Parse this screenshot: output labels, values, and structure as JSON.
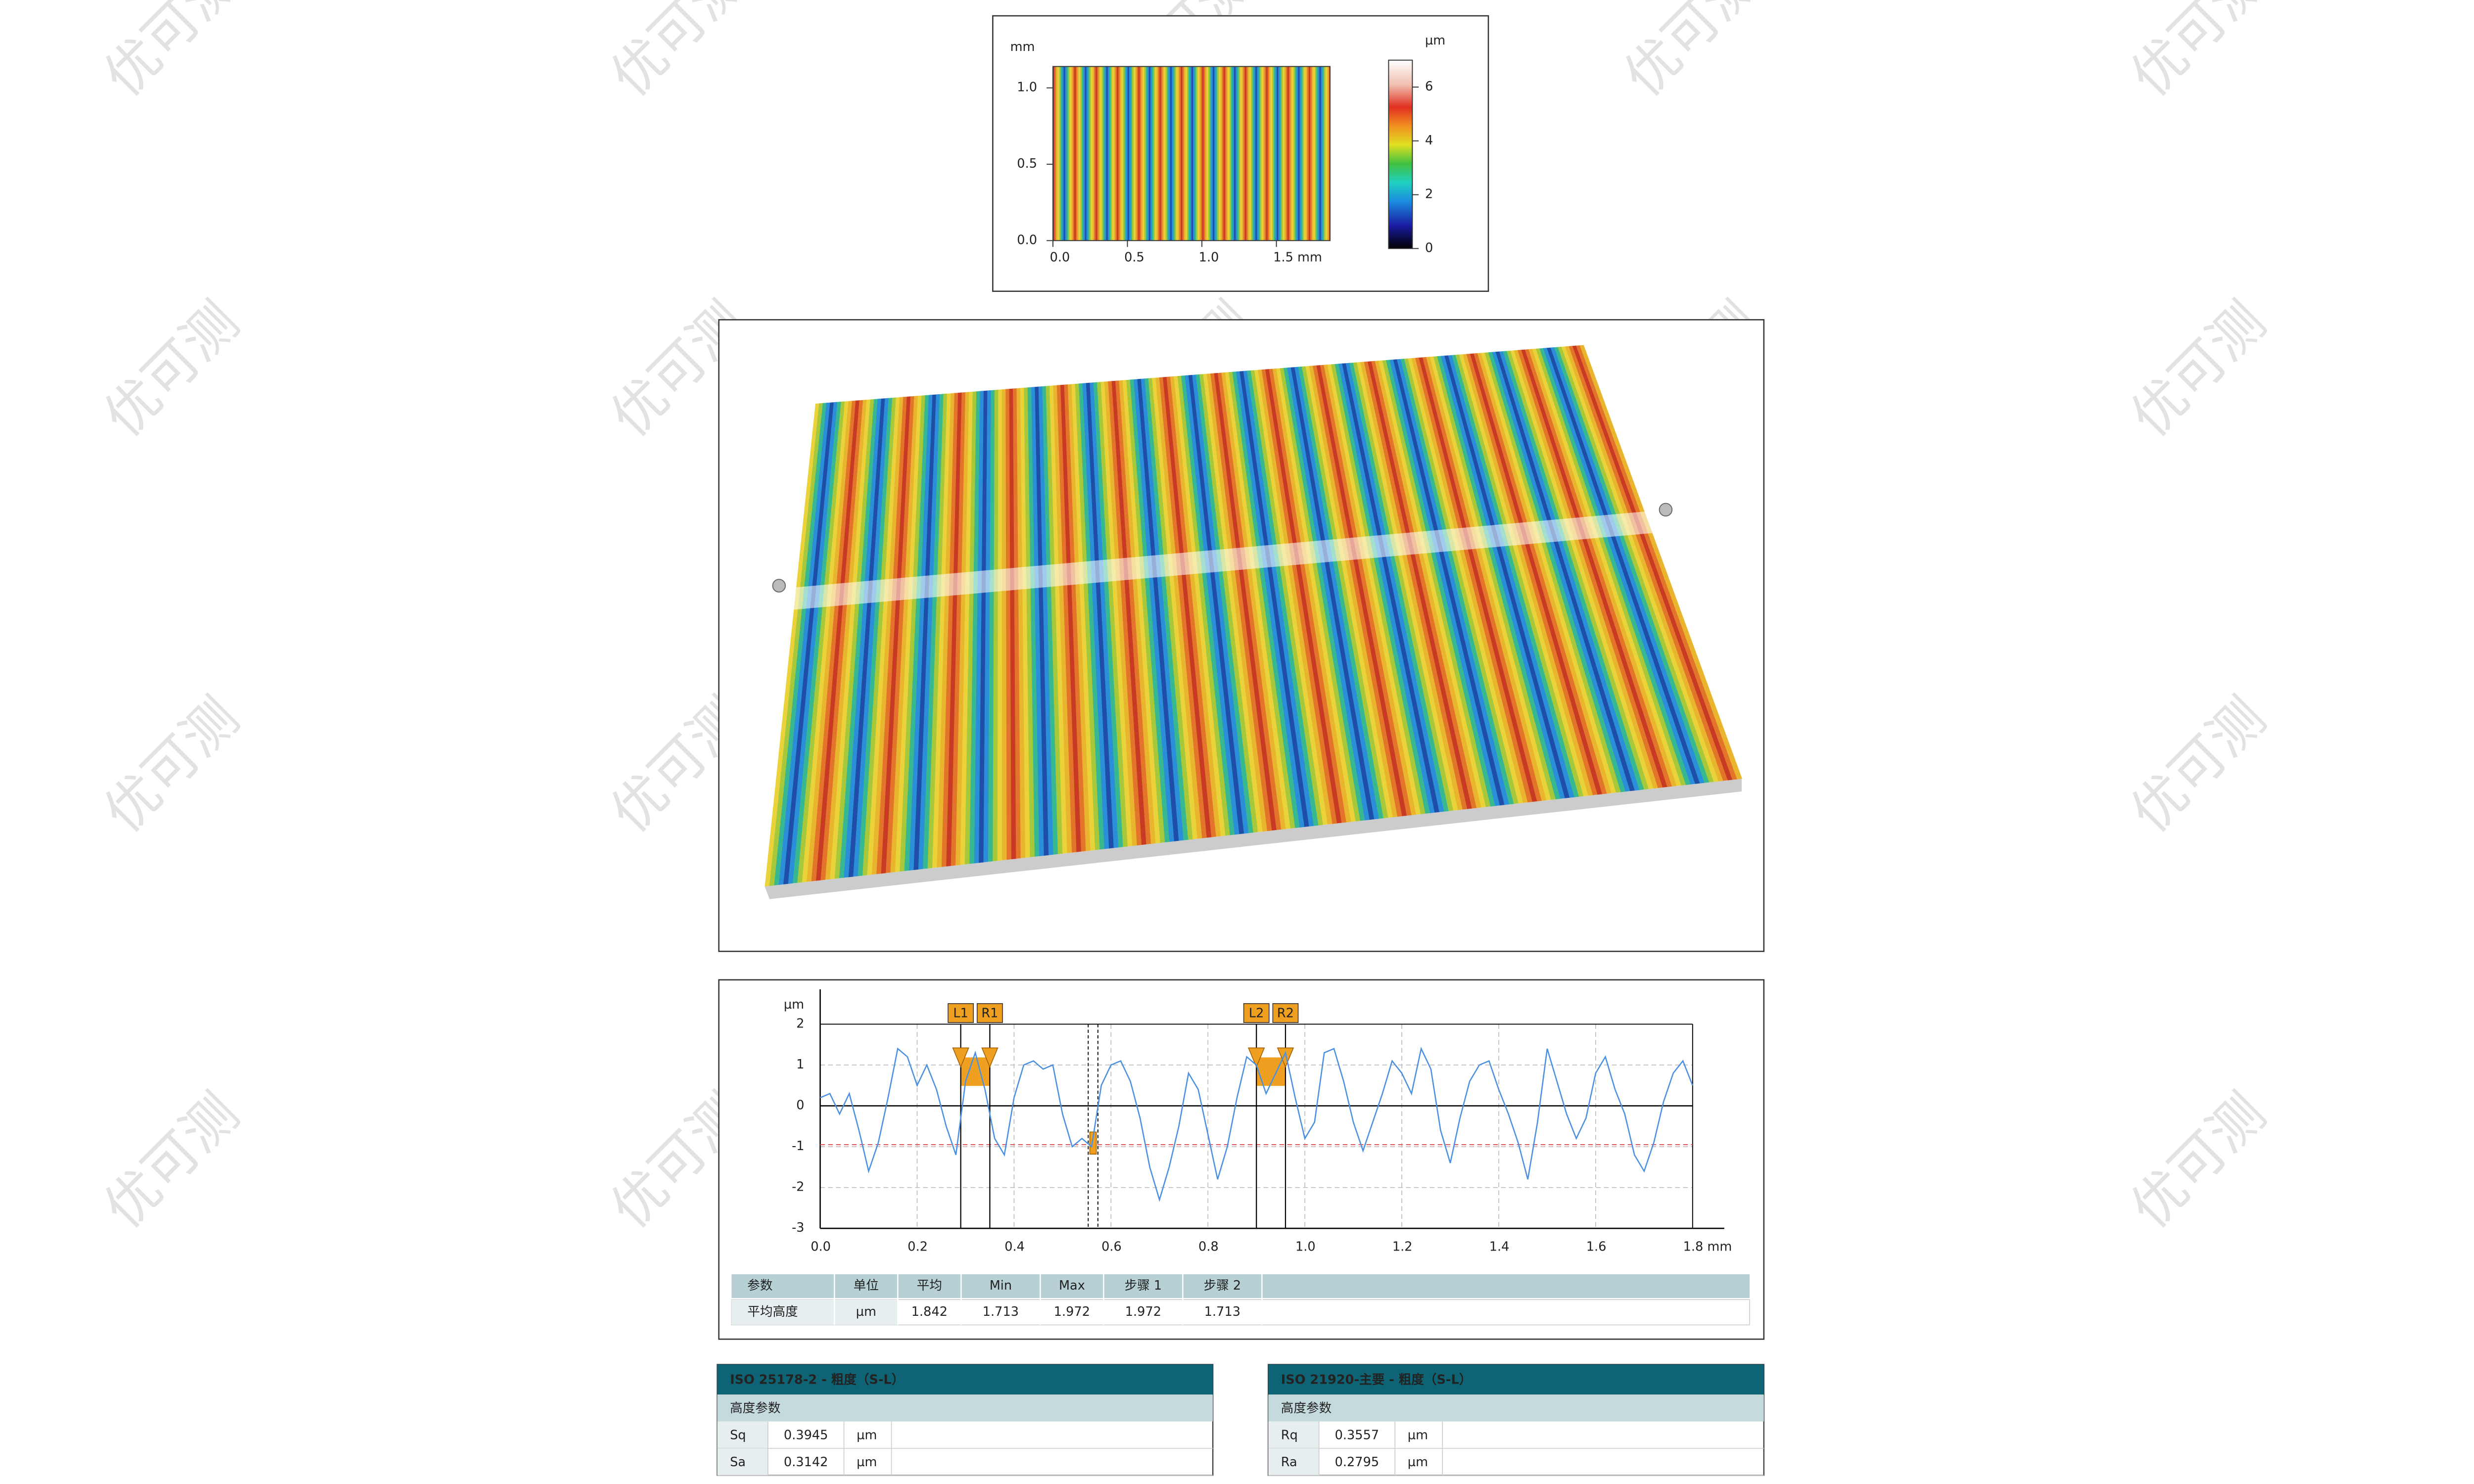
{
  "watermark": "优可测",
  "chart_data": [
    {
      "type": "heatmap",
      "x_unit": "mm",
      "y_unit": "mm",
      "colorbar_unit": "µm",
      "xlim": [
        0,
        1.86
      ],
      "ylim": [
        0,
        1.14
      ],
      "xticks": [
        {
          "value": 0,
          "label": "0.0"
        },
        {
          "value": 0.5,
          "label": "0.5"
        },
        {
          "value": 1,
          "label": "1.0"
        },
        {
          "value": 1.5,
          "label": "1.5 mm"
        }
      ],
      "yticks": [
        {
          "value": 0,
          "label": "0.0"
        },
        {
          "value": 0.5,
          "label": "0.5"
        },
        {
          "value": 1,
          "label": "1.0"
        }
      ],
      "clim": [
        0,
        7
      ],
      "cticks": [
        0,
        2,
        4,
        6
      ]
    },
    {
      "type": "line",
      "y_unit": "µm",
      "xlim": [
        0,
        1.8
      ],
      "ylim": [
        -3,
        2
      ],
      "xticks": [
        {
          "value": 0,
          "label": "0.0"
        },
        0.2,
        0.4,
        0.6,
        0.8,
        {
          "value": 1,
          "label": "1.0"
        },
        1.2,
        1.4,
        1.6,
        {
          "value": 1.8,
          "label": "1.8 mm"
        }
      ],
      "yticks": [
        -3,
        -2,
        -1,
        0,
        1,
        2
      ],
      "grid": true,
      "x": [
        0,
        0.02,
        0.04,
        0.06,
        0.08,
        0.1,
        0.12,
        0.14,
        0.16,
        0.18,
        0.2,
        0.22,
        0.24,
        0.26,
        0.28,
        0.3,
        0.32,
        0.34,
        0.36,
        0.38,
        0.4,
        0.42,
        0.44,
        0.46,
        0.48,
        0.5,
        0.52,
        0.54,
        0.56,
        0.58,
        0.6,
        0.62,
        0.64,
        0.66,
        0.68,
        0.7,
        0.72,
        0.74,
        0.76,
        0.78,
        0.8,
        0.82,
        0.84,
        0.86,
        0.88,
        0.9,
        0.92,
        0.94,
        0.96,
        0.98,
        1,
        1.02,
        1.04,
        1.06,
        1.08,
        1.1,
        1.12,
        1.14,
        1.16,
        1.18,
        1.2,
        1.22,
        1.24,
        1.26,
        1.28,
        1.3,
        1.32,
        1.34,
        1.36,
        1.38,
        1.4,
        1.42,
        1.44,
        1.46,
        1.48,
        1.5,
        1.52,
        1.54,
        1.56,
        1.58,
        1.6,
        1.62,
        1.64,
        1.66,
        1.68,
        1.7,
        1.72,
        1.74,
        1.76,
        1.78,
        1.8
      ],
      "series": [
        {
          "color": "#4a90e2",
          "values": [
            0.2,
            0.3,
            -0.2,
            0.3,
            -0.6,
            -1.6,
            -0.9,
            0.2,
            1.4,
            1.2,
            0.5,
            1.0,
            0.4,
            -0.5,
            -1.2,
            0.6,
            1.3,
            0.4,
            -0.8,
            -1.2,
            0.2,
            1.0,
            1.1,
            0.9,
            1.0,
            -0.2,
            -1.0,
            -0.8,
            -1.0,
            0.5,
            1.0,
            1.1,
            0.6,
            -0.3,
            -1.5,
            -2.3,
            -1.5,
            -0.5,
            0.8,
            0.4,
            -0.7,
            -1.8,
            -1.0,
            0.2,
            1.2,
            1.0,
            0.3,
            0.8,
            1.3,
            0.2,
            -0.8,
            -0.4,
            1.3,
            1.4,
            0.6,
            -0.4,
            -1.1,
            -0.4,
            0.3,
            1.1,
            0.8,
            0.3,
            1.4,
            0.9,
            -0.6,
            -1.4,
            -0.3,
            0.6,
            1.0,
            1.1,
            0.4,
            -0.2,
            -0.9,
            -1.8,
            -0.4,
            1.4,
            0.6,
            -0.2,
            -0.8,
            -0.3,
            0.8,
            1.2,
            0.4,
            -0.2,
            -1.2,
            -1.6,
            -0.9,
            0.1,
            0.8,
            1.1,
            0.5
          ]
        }
      ],
      "ref_line": {
        "value": -0.95,
        "color": "#e05050"
      },
      "cursor_x": [
        0.553,
        0.573
      ],
      "markers": [
        {
          "label": "L1",
          "x": 0.29
        },
        {
          "label": "R1",
          "x": 0.35
        },
        {
          "label": "L2",
          "x": 0.9
        },
        {
          "label": "R2",
          "x": 0.96
        }
      ]
    }
  ],
  "profile_table": {
    "header": [
      "参数",
      "单位",
      "平均",
      "Min",
      "Max",
      "步骤 1",
      "步骤 2"
    ],
    "rows": [
      [
        "平均高度",
        "µm",
        "1.842",
        "1.713",
        "1.972",
        "1.972",
        "1.713"
      ]
    ]
  },
  "iso_tables": [
    {
      "title": "ISO 25178-2 - 粗度（S-L）",
      "section": "高度参数",
      "rows": [
        [
          "Sq",
          "0.3945",
          "µm"
        ],
        [
          "Sa",
          "0.3142",
          "µm"
        ]
      ]
    },
    {
      "title": "ISO 21920-主要 - 粗度（S-L）",
      "section": "高度参数",
      "rows": [
        [
          "Rq",
          "0.3557",
          "µm"
        ],
        [
          "Ra",
          "0.2795",
          "µm"
        ]
      ]
    }
  ]
}
